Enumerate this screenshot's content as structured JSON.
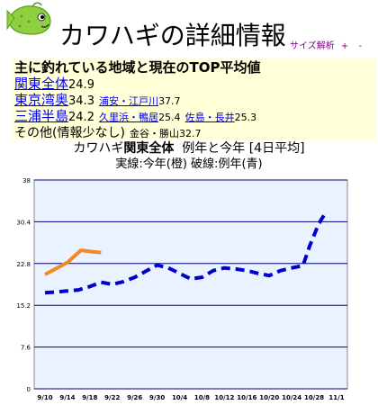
{
  "page": {
    "title": "カワハギの詳細情報",
    "links": [
      {
        "label": "サイズ解析"
      },
      {
        "label": "+"
      },
      {
        "label": "-"
      }
    ]
  },
  "info": {
    "heading": "主に釣れている地域と現在のTOP平均値",
    "overall": {
      "name": "関東全体",
      "value": "24.9"
    },
    "regions": [
      {
        "name": "東京湾奥",
        "value": "34.3",
        "subs": [
          {
            "name": "浦安・江戸川",
            "value": "37.7"
          }
        ]
      },
      {
        "name": "三浦半島",
        "value": "24.2",
        "subs": [
          {
            "name": "久里浜・鴨居",
            "value": "25.4"
          },
          {
            "name": "佐島・長井",
            "value": "25.3"
          }
        ]
      }
    ],
    "other": {
      "name": "その他(情報少なし)",
      "sub": "金谷・勝山",
      "value": "32.7"
    }
  },
  "chart_title": {
    "prefix": "カワハギ",
    "region": "関東全体",
    "suffix": "例年と今年 [4日平均]",
    "subtitle": "実線:今年(橙)  破線:例年(青)"
  },
  "chart_data": {
    "type": "line",
    "categories": [
      "9/10",
      "9/14",
      "9/18",
      "9/22",
      "9/26",
      "9/30",
      "10/4",
      "10/8",
      "10/12",
      "10/16",
      "10/20",
      "10/24",
      "10/28",
      "11/1"
    ],
    "yticks": [
      "0",
      "7.6",
      "15.2",
      "22.8",
      "30.4",
      "38"
    ],
    "ylim": [
      0,
      38
    ],
    "series": [
      {
        "style": "solid",
        "color": "#f08a24",
        "x": [
          0,
          1,
          1.6,
          2,
          2.5
        ],
        "y": [
          20.8,
          23.0,
          25.2,
          25.0,
          24.8
        ]
      },
      {
        "style": "dashed",
        "color": "#0000cc",
        "x": [
          0,
          0.5,
          1,
          1.5,
          2,
          2.5,
          3,
          3.5,
          4,
          4.5,
          5,
          5.5,
          6,
          6.5,
          7,
          7.5,
          8,
          8.5,
          9,
          9.5,
          10,
          10.5,
          11,
          11.5,
          11.8,
          12.2,
          12.5
        ],
        "y": [
          17.5,
          17.6,
          17.8,
          18.0,
          18.6,
          19.4,
          19.0,
          19.5,
          20.3,
          21.4,
          22.5,
          22.0,
          21.0,
          20.0,
          20.3,
          21.5,
          22.0,
          21.8,
          21.5,
          21.0,
          20.6,
          21.5,
          22.0,
          22.4,
          26.0,
          30.0,
          32.0
        ]
      }
    ],
    "grid": true
  }
}
